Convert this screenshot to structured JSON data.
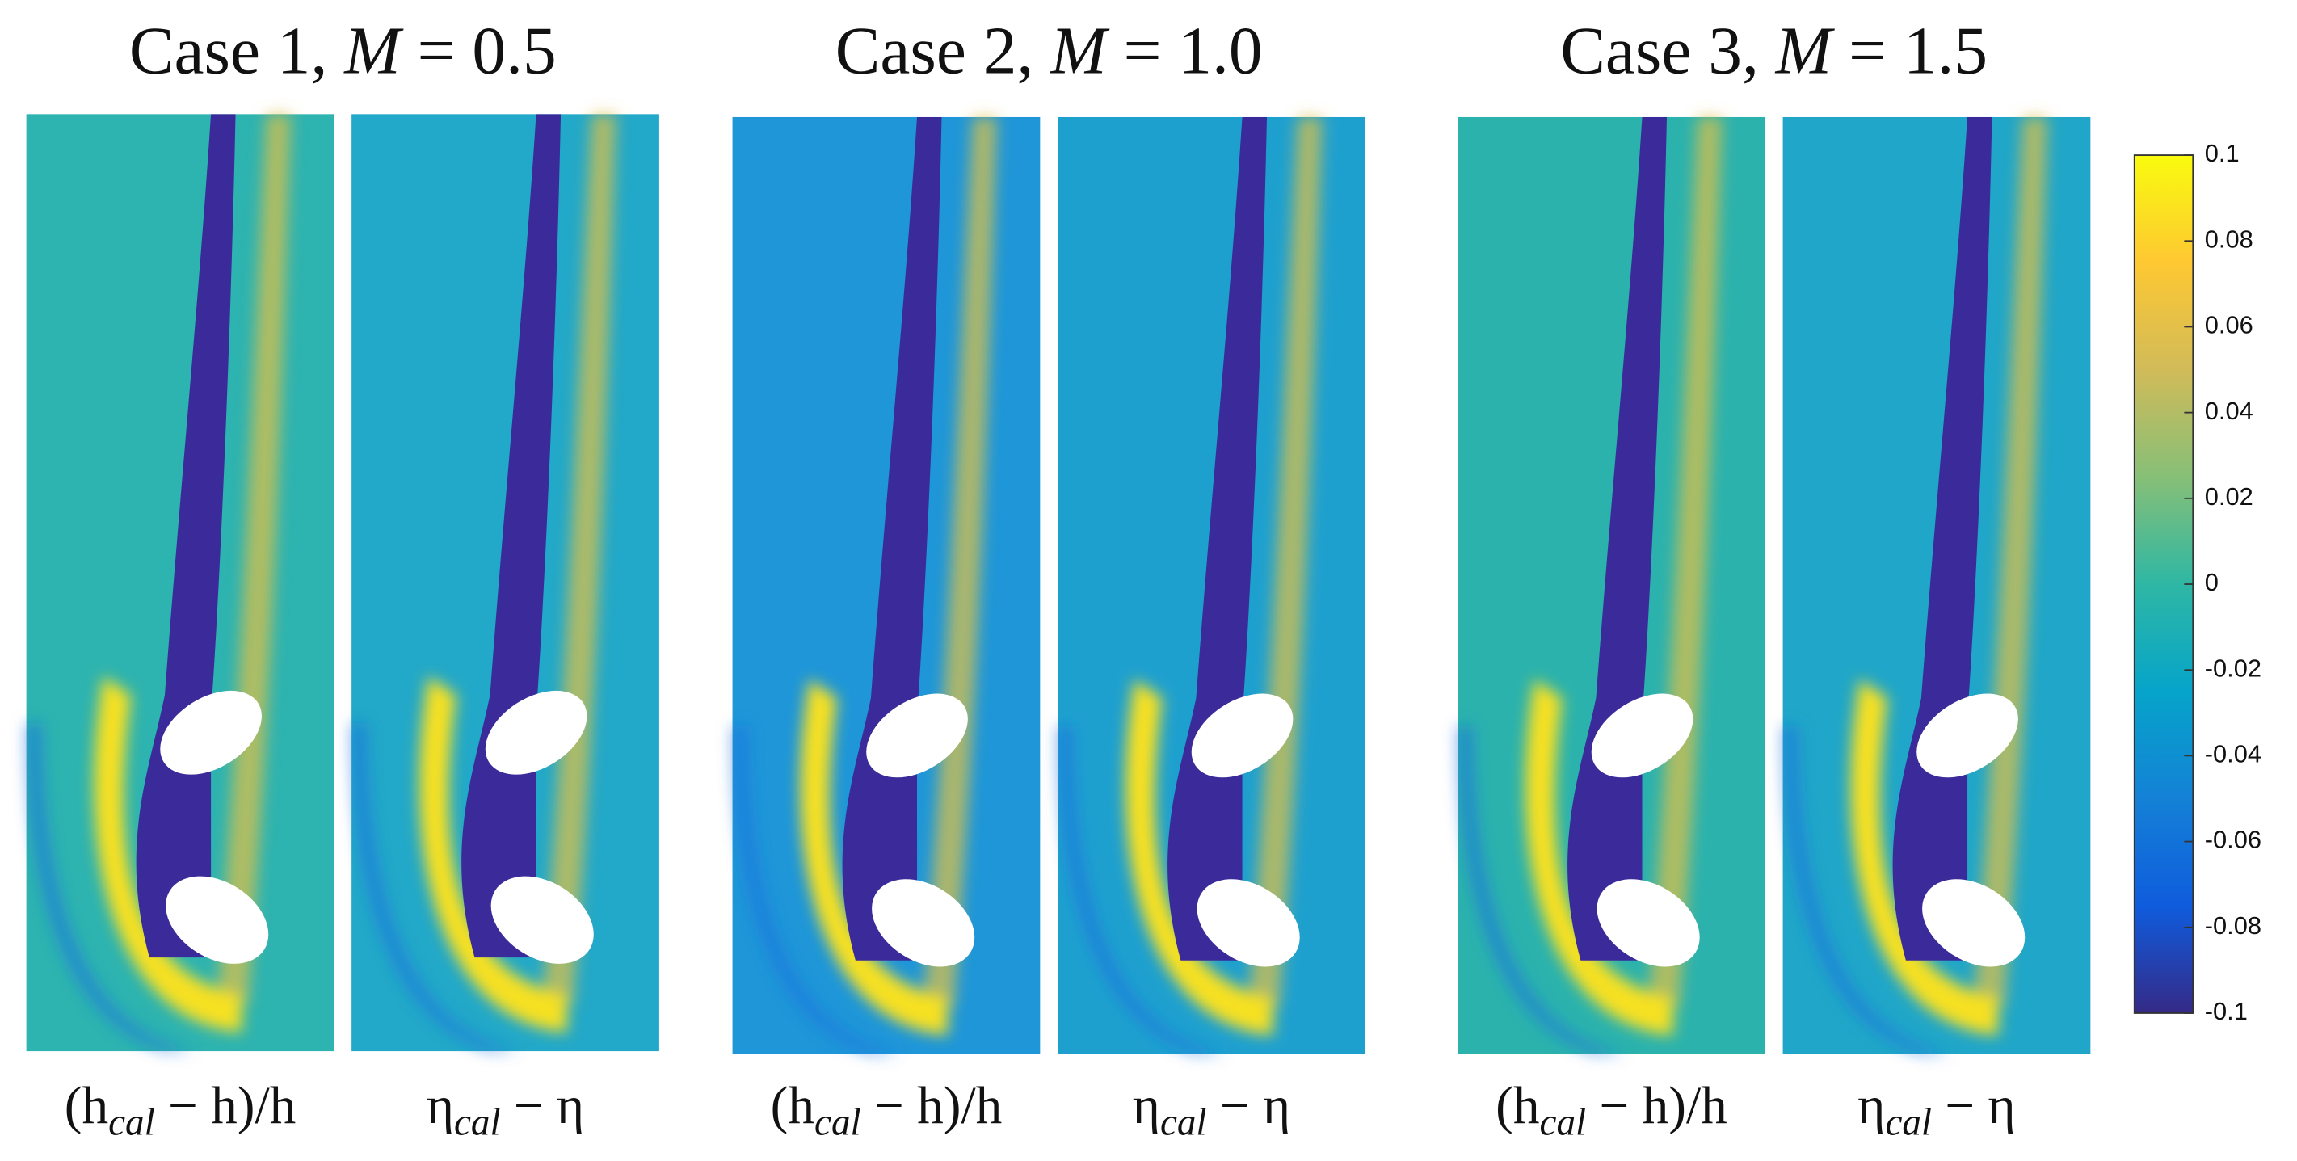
{
  "chart_data": {
    "type": "heatmap",
    "colormap": "parula",
    "colorbar": {
      "lim": [
        -0.1,
        0.1
      ],
      "ticks": [
        0.1,
        0.08,
        0.06,
        0.04,
        0.02,
        0,
        -0.02,
        -0.04,
        -0.06,
        -0.08,
        -0.1
      ]
    },
    "cases": [
      {
        "title": {
          "pre": "Case 1, ",
          "var": "M",
          "post": " = 0.5"
        }
      },
      {
        "title": {
          "pre": "Case 2, ",
          "var": "M",
          "post": " = 1.0"
        }
      },
      {
        "title": {
          "pre": "Case 3, ",
          "var": "M",
          "post": " = 1.5"
        }
      }
    ],
    "panel_labels": [
      {
        "pre": "(h",
        "sub": "cal",
        "post": " − h)/h"
      },
      {
        "pre": "η",
        "sub": "cal",
        "post": " − η"
      }
    ]
  }
}
